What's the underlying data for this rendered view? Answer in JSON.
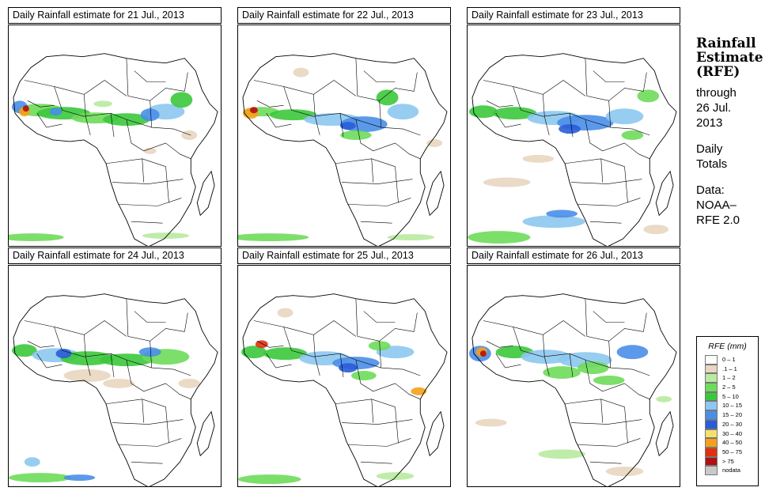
{
  "panels": [
    {
      "title": "Daily Rainfall estimate for  21 Jul., 2013"
    },
    {
      "title": "Daily Rainfall estimate for  22 Jul., 2013"
    },
    {
      "title": "Daily Rainfall estimate for  23 Jul., 2013"
    },
    {
      "title": "Daily Rainfall estimate for  24 Jul., 2013"
    },
    {
      "title": "Daily Rainfall estimate for  25 Jul., 2013"
    },
    {
      "title": "Daily Rainfall estimate for  26 Jul., 2013"
    }
  ],
  "sidebar": {
    "heading1": "Rainfall",
    "heading2": "Estimate",
    "heading3": "(RFE)",
    "through": "through",
    "date1": "26 Jul.",
    "date2": "2013",
    "daily": "Daily",
    "totals": "Totals",
    "data_label": "Data:",
    "source1": "NOAA–",
    "source2": "RFE 2.0"
  },
  "legend": {
    "title": "RFE (mm)",
    "items": [
      {
        "label": "0 – 1",
        "color": "#ffffff"
      },
      {
        "label": ".1 – 1",
        "color": "#e8d6c0"
      },
      {
        "label": "1 – 2",
        "color": "#b8eaa0"
      },
      {
        "label": "2 – 5",
        "color": "#6edc5a"
      },
      {
        "label": "5 – 10",
        "color": "#3cc83c"
      },
      {
        "label": "10 – 15",
        "color": "#8cc8f0"
      },
      {
        "label": "15 – 20",
        "color": "#4a8ee8"
      },
      {
        "label": "20 – 30",
        "color": "#2a5cd8"
      },
      {
        "label": "30 – 40",
        "color": "#f5e06a"
      },
      {
        "label": "40 – 50",
        "color": "#f5a018"
      },
      {
        "label": "50 – 75",
        "color": "#e03010"
      },
      {
        "label": "> 75",
        "color": "#b01010"
      },
      {
        "label": "nodata",
        "color": "#c8c8c8"
      }
    ]
  }
}
